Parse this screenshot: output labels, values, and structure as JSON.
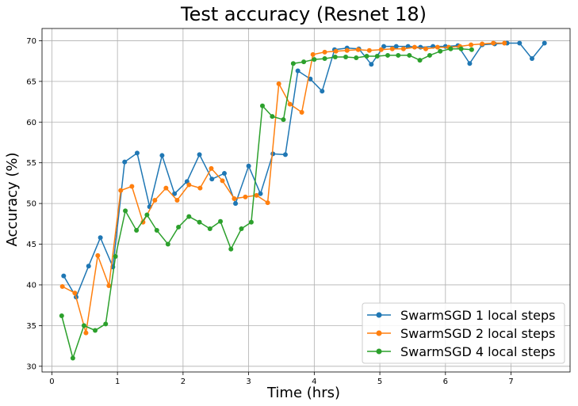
{
  "chart_data": {
    "type": "line",
    "title": "Test accuracy (Resnet 18)",
    "xlabel": "Time (hrs)",
    "ylabel": "Accuracy (%)",
    "xlim": [
      -0.15,
      7.9
    ],
    "ylim": [
      29.3,
      71.5
    ],
    "xticks": [
      0,
      1,
      2,
      3,
      4,
      5,
      6,
      7
    ],
    "yticks": [
      30,
      35,
      40,
      45,
      50,
      55,
      60,
      65,
      70
    ],
    "grid": true,
    "legend_position": "bottom-right",
    "series": [
      {
        "name": "SwarmSGD 1 local steps",
        "color": "#1f77b4",
        "points": [
          [
            0.18,
            41.1
          ],
          [
            0.37,
            38.5
          ],
          [
            0.56,
            42.3
          ],
          [
            0.74,
            45.8
          ],
          [
            0.93,
            42.2
          ],
          [
            1.11,
            55.1
          ],
          [
            1.3,
            56.2
          ],
          [
            1.49,
            49.6
          ],
          [
            1.68,
            55.9
          ],
          [
            1.87,
            51.2
          ],
          [
            2.06,
            52.7
          ],
          [
            2.25,
            56.0
          ],
          [
            2.44,
            53.0
          ],
          [
            2.63,
            53.7
          ],
          [
            2.8,
            50.0
          ],
          [
            3.0,
            54.6
          ],
          [
            3.18,
            51.2
          ],
          [
            3.37,
            56.1
          ],
          [
            3.56,
            56.0
          ],
          [
            3.75,
            66.3
          ],
          [
            3.94,
            65.3
          ],
          [
            4.12,
            63.8
          ],
          [
            4.31,
            68.9
          ],
          [
            4.5,
            69.1
          ],
          [
            4.68,
            69.0
          ],
          [
            4.87,
            67.1
          ],
          [
            5.06,
            69.3
          ],
          [
            5.25,
            69.3
          ],
          [
            5.43,
            69.3
          ],
          [
            5.62,
            69.2
          ],
          [
            5.81,
            69.3
          ],
          [
            6.0,
            69.3
          ],
          [
            6.19,
            69.4
          ],
          [
            6.37,
            67.2
          ],
          [
            6.56,
            69.5
          ],
          [
            6.75,
            69.6
          ],
          [
            6.94,
            69.7
          ],
          [
            7.13,
            69.7
          ],
          [
            7.32,
            67.8
          ],
          [
            7.51,
            69.7
          ]
        ]
      },
      {
        "name": "SwarmSGD 2 local steps",
        "color": "#ff7f0e",
        "points": [
          [
            0.16,
            39.8
          ],
          [
            0.35,
            39.0
          ],
          [
            0.52,
            34.1
          ],
          [
            0.7,
            43.6
          ],
          [
            0.87,
            39.9
          ],
          [
            1.05,
            51.6
          ],
          [
            1.22,
            52.1
          ],
          [
            1.39,
            47.7
          ],
          [
            1.57,
            50.4
          ],
          [
            1.74,
            51.9
          ],
          [
            1.91,
            50.4
          ],
          [
            2.09,
            52.3
          ],
          [
            2.26,
            51.9
          ],
          [
            2.43,
            54.3
          ],
          [
            2.6,
            52.8
          ],
          [
            2.78,
            50.6
          ],
          [
            2.95,
            50.8
          ],
          [
            3.12,
            51.0
          ],
          [
            3.29,
            50.1
          ],
          [
            3.46,
            64.7
          ],
          [
            3.63,
            62.2
          ],
          [
            3.81,
            61.2
          ],
          [
            3.98,
            68.3
          ],
          [
            4.16,
            68.6
          ],
          [
            4.33,
            68.7
          ],
          [
            4.5,
            68.8
          ],
          [
            4.67,
            68.9
          ],
          [
            4.84,
            68.8
          ],
          [
            5.02,
            68.9
          ],
          [
            5.19,
            69.0
          ],
          [
            5.36,
            69.0
          ],
          [
            5.53,
            69.2
          ],
          [
            5.7,
            69.0
          ],
          [
            5.88,
            69.2
          ],
          [
            6.05,
            69.2
          ],
          [
            6.22,
            69.3
          ],
          [
            6.39,
            69.5
          ],
          [
            6.56,
            69.6
          ],
          [
            6.73,
            69.7
          ],
          [
            6.9,
            69.7
          ]
        ]
      },
      {
        "name": "SwarmSGD 4 local steps",
        "color": "#2ca02c",
        "points": [
          [
            0.15,
            36.2
          ],
          [
            0.32,
            31.0
          ],
          [
            0.49,
            35.0
          ],
          [
            0.66,
            34.4
          ],
          [
            0.82,
            35.2
          ],
          [
            0.97,
            43.5
          ],
          [
            1.12,
            49.1
          ],
          [
            1.29,
            46.7
          ],
          [
            1.45,
            48.6
          ],
          [
            1.6,
            46.7
          ],
          [
            1.77,
            45.0
          ],
          [
            1.93,
            47.1
          ],
          [
            2.09,
            48.4
          ],
          [
            2.25,
            47.7
          ],
          [
            2.41,
            46.9
          ],
          [
            2.57,
            47.8
          ],
          [
            2.73,
            44.4
          ],
          [
            2.89,
            46.9
          ],
          [
            3.04,
            47.7
          ],
          [
            3.21,
            62.0
          ],
          [
            3.36,
            60.7
          ],
          [
            3.53,
            60.3
          ],
          [
            3.68,
            67.2
          ],
          [
            3.84,
            67.4
          ],
          [
            4.0,
            67.7
          ],
          [
            4.16,
            67.8
          ],
          [
            4.32,
            68.0
          ],
          [
            4.48,
            68.0
          ],
          [
            4.64,
            67.9
          ],
          [
            4.8,
            68.1
          ],
          [
            4.96,
            68.1
          ],
          [
            5.12,
            68.2
          ],
          [
            5.28,
            68.2
          ],
          [
            5.45,
            68.2
          ],
          [
            5.61,
            67.6
          ],
          [
            5.76,
            68.2
          ],
          [
            5.92,
            68.7
          ],
          [
            6.08,
            69.0
          ],
          [
            6.24,
            69.0
          ],
          [
            6.4,
            68.9
          ]
        ]
      }
    ]
  }
}
